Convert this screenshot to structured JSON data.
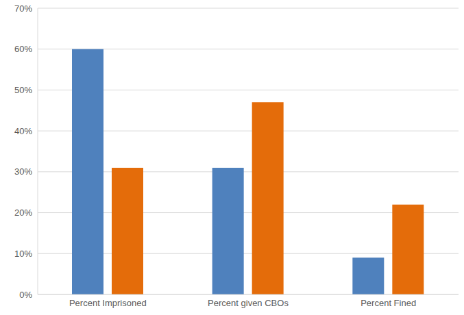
{
  "chart_data": {
    "type": "bar",
    "categories": [
      "Percent Imprisoned",
      "Percent given CBOs",
      "Percent Fined"
    ],
    "series": [
      {
        "color": "#4f81bd",
        "values": [
          60,
          31,
          9
        ]
      },
      {
        "color": "#e46c0a",
        "values": [
          31,
          47,
          22
        ]
      }
    ],
    "ylim": [
      0,
      70
    ],
    "yticks": [
      {
        "value": 0,
        "label": "0%"
      },
      {
        "value": 10,
        "label": "10%"
      },
      {
        "value": 20,
        "label": "20%"
      },
      {
        "value": 30,
        "label": "30%"
      },
      {
        "value": 40,
        "label": "40%"
      },
      {
        "value": 50,
        "label": "50%"
      },
      {
        "value": 60,
        "label": "60%"
      },
      {
        "value": 70,
        "label": "70%"
      }
    ],
    "grid": true
  }
}
